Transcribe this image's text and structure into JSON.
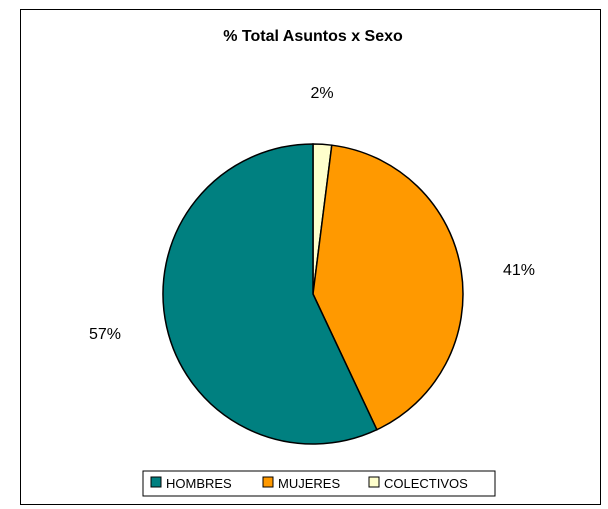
{
  "chart_data": {
    "type": "pie",
    "title": "% Total Asuntos x Sexo",
    "categories": [
      "HOMBRES",
      "MUJERES",
      "COLECTIVOS"
    ],
    "values": [
      57,
      41,
      2
    ],
    "data_labels": [
      "57%",
      "41%",
      "2%"
    ],
    "colors": [
      "#008080",
      "#FF9900",
      "#FFFFCC"
    ],
    "legend_position": "bottom"
  }
}
